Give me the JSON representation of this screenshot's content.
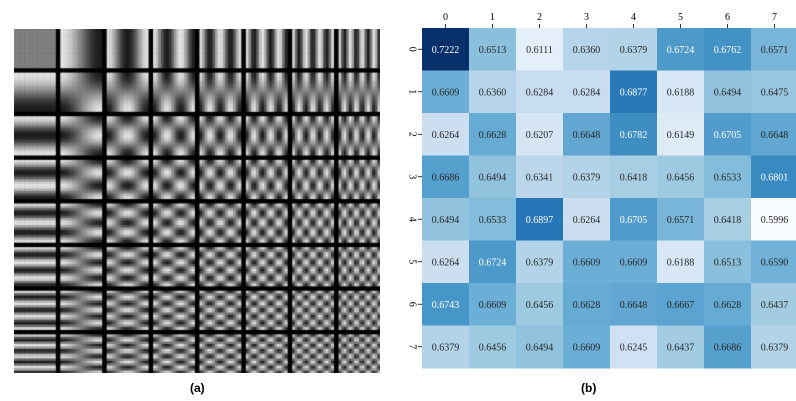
{
  "captions": {
    "a": "(a)",
    "b": "(b)"
  },
  "basis_panel": {
    "description_name": "dct-basis-images",
    "grid_size": 8,
    "cell_resolution": 16
  },
  "chart_data": {
    "type": "heatmap",
    "title": "",
    "xlabel": "",
    "ylabel": "",
    "x_ticks": [
      "0",
      "1",
      "2",
      "3",
      "4",
      "5",
      "6",
      "7"
    ],
    "y_ticks": [
      "0",
      "1",
      "2",
      "3",
      "4",
      "5",
      "6",
      "7"
    ],
    "x_axis_position": "top",
    "colormap": "Blues",
    "vmin": 0.5996,
    "vmax": 0.7222,
    "values": [
      [
        0.7222,
        0.6513,
        0.6111,
        0.636,
        0.6379,
        0.6724,
        0.6762,
        0.6571
      ],
      [
        0.6609,
        0.636,
        0.6284,
        0.6284,
        0.6877,
        0.6188,
        0.6494,
        0.6475
      ],
      [
        0.6264,
        0.6628,
        0.6207,
        0.6648,
        0.6782,
        0.6149,
        0.6705,
        0.6648
      ],
      [
        0.6686,
        0.6494,
        0.6341,
        0.6379,
        0.6418,
        0.6456,
        0.6533,
        0.6801
      ],
      [
        0.6494,
        0.6533,
        0.6897,
        0.6264,
        0.6705,
        0.6571,
        0.6418,
        0.5996
      ],
      [
        0.6264,
        0.6724,
        0.6379,
        0.6609,
        0.6609,
        0.6188,
        0.6513,
        0.659
      ],
      [
        0.6743,
        0.6609,
        0.6456,
        0.6628,
        0.6648,
        0.6667,
        0.6628,
        0.6437
      ],
      [
        0.6379,
        0.6456,
        0.6494,
        0.6609,
        0.6245,
        0.6437,
        0.6686,
        0.6379
      ]
    ],
    "labels": [
      [
        "0.7222",
        "0.6513",
        "0.6111",
        "0.6360",
        "0.6379",
        "0.6724",
        "0.6762",
        "0.6571"
      ],
      [
        "0.6609",
        "0.6360",
        "0.6284",
        "0.6284",
        "0.6877",
        "0.6188",
        "0.6494",
        "0.6475"
      ],
      [
        "0.6264",
        "0.6628",
        "0.6207",
        "0.6648",
        "0.6782",
        "0.6149",
        "0.6705",
        "0.6648"
      ],
      [
        "0.6686",
        "0.6494",
        "0.6341",
        "0.6379",
        "0.6418",
        "0.6456",
        "0.6533",
        "0.6801"
      ],
      [
        "0.6494",
        "0.6533",
        "0.6897",
        "0.6264",
        "0.6705",
        "0.6571",
        "0.6418",
        "0.5996"
      ],
      [
        "0.6264",
        "0.6724",
        "0.6379",
        "0.6609",
        "0.6609",
        "0.6188",
        "0.6513",
        "0.6590"
      ],
      [
        "0.6743",
        "0.6609",
        "0.6456",
        "0.6628",
        "0.6648",
        "0.6667",
        "0.6628",
        "0.6437"
      ],
      [
        "0.6379",
        "0.6456",
        "0.6494",
        "0.6609",
        "0.6245",
        "0.6437",
        "0.6686",
        "0.6379"
      ]
    ]
  }
}
